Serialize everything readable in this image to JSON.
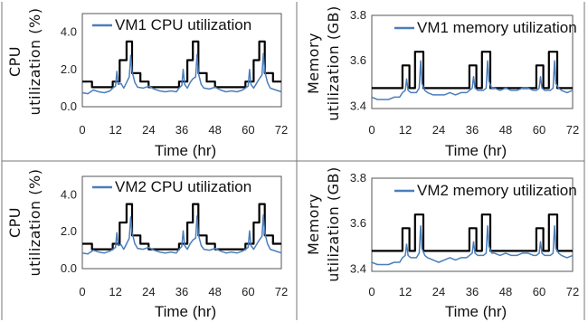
{
  "colors": {
    "measured": "#4a7ebb",
    "predicted": "#000000",
    "frame": "#555555"
  },
  "chart_data": [
    {
      "type": "line",
      "legend": "VM1 CPU utilization",
      "xlabel": "Time (hr)",
      "ylabel_line1": "CPU",
      "ylabel_line2": "utilization (%)",
      "xticks": [
        "0",
        "12",
        "24",
        "36",
        "48",
        "60",
        "72"
      ],
      "yticks": [
        "0.0",
        "2.0",
        "4.0"
      ],
      "xlim": [
        0,
        72
      ],
      "ylim": [
        0,
        5
      ],
      "ytick_values": [
        0,
        2,
        4
      ],
      "series": [
        {
          "role": "step",
          "x": [
            0,
            3.5,
            3.5,
            11,
            11,
            13.5,
            13.5,
            16,
            16,
            18,
            18,
            21,
            21,
            24,
            24,
            35,
            35,
            38,
            38,
            40,
            40,
            42,
            42,
            45,
            45,
            48,
            48,
            59,
            59,
            62,
            62,
            64,
            64,
            66,
            66,
            69,
            69,
            72
          ],
          "y": [
            1.35,
            1.35,
            1.05,
            1.05,
            1.35,
            1.35,
            2.5,
            2.5,
            3.5,
            3.5,
            1.8,
            1.8,
            1.35,
            1.35,
            1.05,
            1.05,
            1.35,
            1.35,
            2.5,
            2.5,
            3.5,
            3.5,
            1.8,
            1.8,
            1.35,
            1.35,
            1.05,
            1.05,
            1.35,
            1.35,
            2.5,
            2.5,
            3.5,
            3.5,
            1.8,
            1.8,
            1.35,
            1.35
          ]
        },
        {
          "role": "measured",
          "x": [
            0,
            2,
            4,
            6,
            8,
            10,
            11,
            12,
            12.5,
            13,
            14,
            15,
            16,
            17,
            17.5,
            18,
            19,
            20,
            22,
            24,
            26,
            28,
            30,
            32,
            34,
            35,
            36,
            36.5,
            37,
            38,
            39,
            40,
            41,
            41.5,
            42,
            43,
            44,
            46,
            48,
            50,
            52,
            54,
            56,
            58,
            59,
            60,
            60.5,
            61,
            62,
            63,
            64,
            65,
            65.5,
            66,
            67,
            68,
            70,
            72
          ],
          "y": [
            0.75,
            0.7,
            0.9,
            0.8,
            0.75,
            0.85,
            1.0,
            1.1,
            1.9,
            1.2,
            1.25,
            1.0,
            1.3,
            1.6,
            2.75,
            1.9,
            1.3,
            1.05,
            1.0,
            1.1,
            0.95,
            0.85,
            0.8,
            0.85,
            0.8,
            1.0,
            1.15,
            2.0,
            1.2,
            1.0,
            1.3,
            1.5,
            1.6,
            2.8,
            1.8,
            1.2,
            1.0,
            0.95,
            1.05,
            0.9,
            0.8,
            0.85,
            0.8,
            0.9,
            1.0,
            1.1,
            2.0,
            1.2,
            1.0,
            1.25,
            1.5,
            1.7,
            2.85,
            1.9,
            1.3,
            1.0,
            0.9,
            0.8
          ]
        }
      ]
    },
    {
      "type": "line",
      "legend": "VM1 memory utilization",
      "xlabel": "Time (hr)",
      "ylabel_line1": "Memory",
      "ylabel_line2": "utilization (GB)",
      "xticks": [
        "0",
        "12",
        "24",
        "36",
        "48",
        "60",
        "72"
      ],
      "yticks": [
        "3.4",
        "3.6",
        "3.8"
      ],
      "xlim": [
        0,
        72
      ],
      "ylim": [
        3.39,
        3.8
      ],
      "ytick_values": [
        3.4,
        3.6,
        3.8
      ],
      "series": [
        {
          "role": "step",
          "x": [
            0,
            11,
            11,
            13.5,
            13.5,
            15.5,
            15.5,
            18.5,
            18.5,
            35,
            35,
            37.5,
            37.5,
            39.5,
            39.5,
            42.5,
            42.5,
            59,
            59,
            61.5,
            61.5,
            63.5,
            63.5,
            66.5,
            66.5,
            72
          ],
          "y": [
            3.48,
            3.48,
            3.58,
            3.58,
            3.48,
            3.48,
            3.64,
            3.64,
            3.48,
            3.48,
            3.58,
            3.58,
            3.48,
            3.48,
            3.64,
            3.64,
            3.48,
            3.48,
            3.58,
            3.58,
            3.48,
            3.48,
            3.64,
            3.64,
            3.48,
            3.48
          ]
        },
        {
          "role": "measured",
          "x": [
            0,
            2,
            4,
            6,
            8,
            10,
            11,
            12,
            12.5,
            13,
            14,
            16,
            17,
            17.5,
            18,
            19,
            20,
            22,
            24,
            26,
            28,
            30,
            32,
            34,
            35,
            36,
            36.5,
            37,
            38,
            40,
            41,
            41.5,
            42,
            43,
            44,
            46,
            48,
            50,
            52,
            54,
            56,
            58,
            59,
            60,
            60.5,
            61,
            62,
            64,
            65,
            65.5,
            66,
            67,
            68,
            70,
            72
          ],
          "y": [
            3.44,
            3.43,
            3.43,
            3.43,
            3.44,
            3.44,
            3.46,
            3.47,
            3.52,
            3.47,
            3.46,
            3.46,
            3.48,
            3.6,
            3.5,
            3.47,
            3.46,
            3.45,
            3.45,
            3.45,
            3.46,
            3.45,
            3.46,
            3.46,
            3.47,
            3.48,
            3.53,
            3.48,
            3.47,
            3.47,
            3.48,
            3.6,
            3.51,
            3.48,
            3.48,
            3.47,
            3.48,
            3.47,
            3.47,
            3.48,
            3.48,
            3.47,
            3.47,
            3.48,
            3.53,
            3.48,
            3.47,
            3.47,
            3.48,
            3.6,
            3.5,
            3.48,
            3.47,
            3.46,
            3.47
          ]
        }
      ]
    },
    {
      "type": "line",
      "legend": "VM2 CPU utilization",
      "xlabel": "Time (hr)",
      "ylabel_line1": "CPU",
      "ylabel_line2": "utilization (%)",
      "xticks": [
        "0",
        "12",
        "24",
        "36",
        "48",
        "60",
        "72"
      ],
      "yticks": [
        "0.0",
        "2.0",
        "4.0"
      ],
      "xlim": [
        0,
        72
      ],
      "ylim": [
        0,
        5
      ],
      "ytick_values": [
        0,
        2,
        4
      ],
      "series": [
        {
          "role": "step",
          "x": [
            0,
            3.5,
            3.5,
            11,
            11,
            13.5,
            13.5,
            16,
            16,
            18,
            18,
            21,
            21,
            24,
            24,
            35,
            35,
            38,
            38,
            40,
            40,
            42,
            42,
            45,
            45,
            48,
            48,
            59,
            59,
            62,
            62,
            64,
            64,
            66,
            66,
            69,
            69,
            72
          ],
          "y": [
            1.35,
            1.35,
            1.05,
            1.05,
            1.35,
            1.35,
            2.5,
            2.5,
            3.5,
            3.5,
            1.8,
            1.8,
            1.35,
            1.35,
            1.05,
            1.05,
            1.35,
            1.35,
            2.5,
            2.5,
            3.5,
            3.5,
            1.8,
            1.8,
            1.35,
            1.35,
            1.05,
            1.05,
            1.35,
            1.35,
            2.5,
            2.5,
            3.5,
            3.5,
            1.8,
            1.8,
            1.35,
            1.35
          ]
        },
        {
          "role": "measured",
          "x": [
            0,
            2,
            4,
            6,
            8,
            10,
            11,
            12,
            12.5,
            13,
            14,
            15,
            16,
            17,
            17.5,
            18,
            19,
            20,
            22,
            24,
            26,
            28,
            30,
            32,
            34,
            35,
            36,
            36.5,
            37,
            38,
            39,
            40,
            41,
            41.5,
            42,
            43,
            44,
            46,
            48,
            50,
            52,
            54,
            56,
            58,
            59,
            60,
            60.5,
            61,
            62,
            63,
            64,
            65,
            65.5,
            66,
            67,
            68,
            70,
            72
          ],
          "y": [
            0.85,
            0.8,
            1.0,
            0.9,
            0.85,
            0.95,
            1.05,
            1.15,
            1.95,
            1.25,
            1.3,
            1.05,
            1.35,
            1.65,
            2.8,
            1.95,
            1.35,
            1.1,
            1.05,
            1.15,
            1.0,
            0.9,
            0.85,
            0.9,
            0.85,
            1.05,
            1.2,
            2.05,
            1.25,
            1.05,
            1.35,
            1.55,
            1.65,
            2.85,
            1.85,
            1.25,
            1.05,
            1.0,
            1.1,
            0.95,
            0.85,
            0.9,
            0.85,
            0.95,
            1.05,
            1.15,
            2.05,
            1.25,
            1.05,
            1.3,
            1.55,
            1.75,
            2.9,
            1.95,
            1.35,
            1.05,
            0.95,
            0.85
          ]
        }
      ]
    },
    {
      "type": "line",
      "legend": "VM2 memory utilization",
      "xlabel": "Time (hr)",
      "ylabel_line1": "Memory",
      "ylabel_line2": "utilization (GB)",
      "xticks": [
        "0",
        "12",
        "24",
        "36",
        "48",
        "60",
        "72"
      ],
      "yticks": [
        "3.4",
        "3.6",
        "3.8"
      ],
      "xlim": [
        0,
        72
      ],
      "ylim": [
        3.39,
        3.8
      ],
      "ytick_values": [
        3.4,
        3.6,
        3.8
      ],
      "series": [
        {
          "role": "step",
          "x": [
            0,
            11,
            11,
            13.5,
            13.5,
            15.5,
            15.5,
            18.5,
            18.5,
            35,
            35,
            37.5,
            37.5,
            39.5,
            39.5,
            42.5,
            42.5,
            59,
            59,
            61.5,
            61.5,
            63.5,
            63.5,
            66.5,
            66.5,
            72
          ],
          "y": [
            3.48,
            3.48,
            3.58,
            3.58,
            3.48,
            3.48,
            3.64,
            3.64,
            3.48,
            3.48,
            3.58,
            3.58,
            3.48,
            3.48,
            3.64,
            3.64,
            3.48,
            3.48,
            3.58,
            3.58,
            3.48,
            3.48,
            3.64,
            3.64,
            3.48,
            3.48
          ]
        },
        {
          "role": "measured",
          "x": [
            0,
            2,
            4,
            6,
            8,
            10,
            11,
            12,
            12.5,
            13,
            14,
            16,
            17,
            17.5,
            18,
            19,
            20,
            22,
            24,
            26,
            28,
            30,
            32,
            34,
            35,
            36,
            36.5,
            37,
            38,
            40,
            41,
            41.5,
            42,
            43,
            44,
            46,
            48,
            50,
            52,
            54,
            56,
            58,
            59,
            60,
            60.5,
            61,
            62,
            64,
            65,
            65.5,
            66,
            67,
            68,
            70,
            72
          ],
          "y": [
            3.43,
            3.42,
            3.42,
            3.42,
            3.43,
            3.43,
            3.45,
            3.46,
            3.51,
            3.46,
            3.45,
            3.45,
            3.47,
            3.59,
            3.49,
            3.46,
            3.45,
            3.44,
            3.43,
            3.44,
            3.45,
            3.44,
            3.45,
            3.45,
            3.46,
            3.47,
            3.52,
            3.47,
            3.46,
            3.46,
            3.47,
            3.59,
            3.5,
            3.47,
            3.47,
            3.46,
            3.47,
            3.46,
            3.46,
            3.47,
            3.47,
            3.46,
            3.46,
            3.47,
            3.52,
            3.47,
            3.46,
            3.46,
            3.47,
            3.59,
            3.49,
            3.47,
            3.46,
            3.45,
            3.46
          ]
        }
      ]
    }
  ]
}
